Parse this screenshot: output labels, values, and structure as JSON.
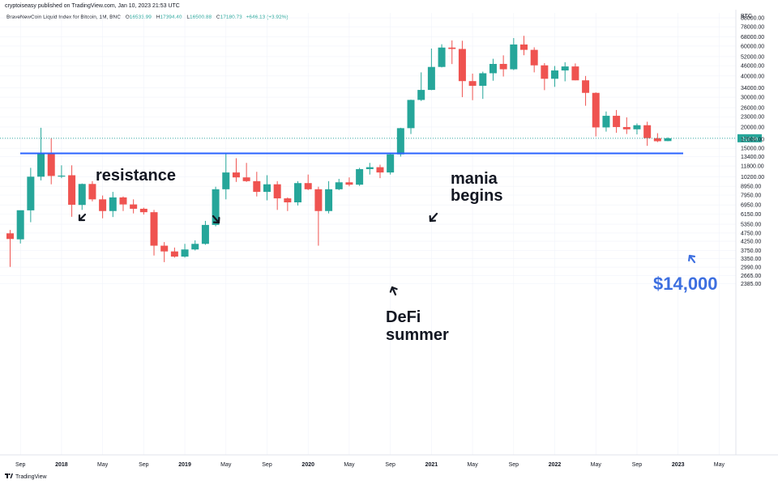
{
  "header": {
    "publisher": "cryptoiseasy published on TradingView.com, Jan 10, 2023 21:53 UTC"
  },
  "symbol_info": {
    "name": "BraveNewCoin Liquid Index for Bitcoin, 1M, BNC",
    "open_label": "O",
    "open": "16533.99",
    "high_label": "H",
    "high": "17394.40",
    "low_label": "L",
    "low": "16500.88",
    "close_label": "C",
    "close": "17180.73",
    "change": "+646.13 (+3.92%)"
  },
  "branding": {
    "label": "TradingView"
  },
  "colors": {
    "up": "#26a69a",
    "down": "#ef5350",
    "support_line": "#2962ff",
    "price_label": "#26a69a",
    "annotation_price": "#3d6fe0",
    "axis_text": "#131722",
    "grid": "#f0f3fa"
  },
  "chart_data": {
    "type": "candlestick",
    "y_scale": "log",
    "ylim": [
      2100,
      110000
    ],
    "currency_label": "BTC",
    "y_ticks": [
      "88000.00",
      "78000.00",
      "68000.00",
      "60000.00",
      "52000.00",
      "46000.00",
      "40000.00",
      "34000.00",
      "30000.00",
      "26000.00",
      "23000.00",
      "20000.00",
      "17000.00",
      "15000.00",
      "13400.00",
      "11800.00",
      "10200.00",
      "8950.00",
      "7950.00",
      "6950.00",
      "6150.00",
      "5350.00",
      "4750.00",
      "4250.00",
      "3750.00",
      "3350.00",
      "2990.00",
      "2665.00",
      "2385.00"
    ],
    "x_ticks": [
      "Sep",
      "2018",
      "May",
      "Sep",
      "2019",
      "May",
      "Sep",
      "2020",
      "May",
      "Sep",
      "2021",
      "May",
      "Sep",
      "2022",
      "May",
      "Sep",
      "2023",
      "May"
    ],
    "candles": [
      {
        "date": "2017-08",
        "o": 4730,
        "h": 4950,
        "l": 3000,
        "c": 4380
      },
      {
        "date": "2017-09",
        "o": 4360,
        "h": 6450,
        "l": 4120,
        "c": 6470
      },
      {
        "date": "2017-10",
        "o": 6460,
        "h": 11500,
        "l": 5500,
        "c": 10200
      },
      {
        "date": "2017-11",
        "o": 10200,
        "h": 19800,
        "l": 9700,
        "c": 13900
      },
      {
        "date": "2017-12",
        "o": 13900,
        "h": 17200,
        "l": 9200,
        "c": 10300
      },
      {
        "date": "2018-01",
        "o": 10300,
        "h": 11900,
        "l": 10000,
        "c": 10350
      },
      {
        "date": "2018-02",
        "o": 10400,
        "h": 11900,
        "l": 5920,
        "c": 6970
      },
      {
        "date": "2018-03",
        "o": 6950,
        "h": 9300,
        "l": 6500,
        "c": 9240
      },
      {
        "date": "2018-04",
        "o": 9240,
        "h": 9600,
        "l": 7300,
        "c": 7500
      },
      {
        "date": "2018-05",
        "o": 7500,
        "h": 7900,
        "l": 5800,
        "c": 6400
      },
      {
        "date": "2018-06",
        "o": 6400,
        "h": 8300,
        "l": 5900,
        "c": 7700
      },
      {
        "date": "2018-07",
        "o": 7700,
        "h": 7800,
        "l": 6400,
        "c": 7000
      },
      {
        "date": "2018-08",
        "o": 7000,
        "h": 7500,
        "l": 6200,
        "c": 6600
      },
      {
        "date": "2018-09",
        "o": 6600,
        "h": 6700,
        "l": 6100,
        "c": 6300
      },
      {
        "date": "2018-10",
        "o": 6300,
        "h": 6500,
        "l": 3500,
        "c": 4000
      },
      {
        "date": "2018-11",
        "o": 4000,
        "h": 4200,
        "l": 3200,
        "c": 3700
      },
      {
        "date": "2018-12",
        "o": 3700,
        "h": 3900,
        "l": 3400,
        "c": 3450
      },
      {
        "date": "2019-01",
        "o": 3450,
        "h": 4100,
        "l": 3400,
        "c": 3800
      },
      {
        "date": "2019-02",
        "o": 3800,
        "h": 4300,
        "l": 3750,
        "c": 4100
      },
      {
        "date": "2019-03",
        "o": 4100,
        "h": 5600,
        "l": 4050,
        "c": 5300
      },
      {
        "date": "2019-04",
        "o": 5300,
        "h": 8900,
        "l": 5200,
        "c": 8600
      },
      {
        "date": "2019-05",
        "o": 8600,
        "h": 13900,
        "l": 7500,
        "c": 10800
      },
      {
        "date": "2019-06",
        "o": 10800,
        "h": 13100,
        "l": 9500,
        "c": 10100
      },
      {
        "date": "2019-07",
        "o": 10100,
        "h": 12300,
        "l": 9500,
        "c": 9600
      },
      {
        "date": "2019-08",
        "o": 9600,
        "h": 10900,
        "l": 7800,
        "c": 8300
      },
      {
        "date": "2019-09",
        "o": 8300,
        "h": 10400,
        "l": 7400,
        "c": 9200
      },
      {
        "date": "2019-10",
        "o": 9200,
        "h": 9600,
        "l": 6500,
        "c": 7600
      },
      {
        "date": "2019-11",
        "o": 7600,
        "h": 7700,
        "l": 6400,
        "c": 7200
      },
      {
        "date": "2019-12",
        "o": 7200,
        "h": 9600,
        "l": 6900,
        "c": 9350
      },
      {
        "date": "2020-01",
        "o": 9350,
        "h": 10500,
        "l": 8500,
        "c": 8600
      },
      {
        "date": "2020-02",
        "o": 8600,
        "h": 8900,
        "l": 4000,
        "c": 6400
      },
      {
        "date": "2020-03",
        "o": 6400,
        "h": 9600,
        "l": 6200,
        "c": 8600
      },
      {
        "date": "2020-04",
        "o": 8600,
        "h": 9900,
        "l": 8500,
        "c": 9450
      },
      {
        "date": "2020-05",
        "o": 9450,
        "h": 10100,
        "l": 8950,
        "c": 9150
      },
      {
        "date": "2020-06",
        "o": 9150,
        "h": 11500,
        "l": 9000,
        "c": 11300
      },
      {
        "date": "2020-07",
        "o": 11300,
        "h": 12300,
        "l": 10500,
        "c": 11600
      },
      {
        "date": "2020-08",
        "o": 11600,
        "h": 12000,
        "l": 10000,
        "c": 10800
      },
      {
        "date": "2020-09",
        "o": 10800,
        "h": 14100,
        "l": 10500,
        "c": 13800
      },
      {
        "date": "2020-10",
        "o": 13800,
        "h": 19800,
        "l": 13400,
        "c": 19700
      },
      {
        "date": "2020-11",
        "o": 19700,
        "h": 29000,
        "l": 18200,
        "c": 28900
      },
      {
        "date": "2020-12",
        "o": 28900,
        "h": 42000,
        "l": 28500,
        "c": 33100
      },
      {
        "date": "2021-01",
        "o": 33100,
        "h": 58000,
        "l": 33000,
        "c": 45200
      },
      {
        "date": "2021-02",
        "o": 45200,
        "h": 61500,
        "l": 44900,
        "c": 58800
      },
      {
        "date": "2021-03",
        "o": 58800,
        "h": 64800,
        "l": 47000,
        "c": 57700
      },
      {
        "date": "2021-04",
        "o": 57700,
        "h": 64500,
        "l": 30000,
        "c": 37300
      },
      {
        "date": "2021-05",
        "o": 37300,
        "h": 41300,
        "l": 28800,
        "c": 35000
      },
      {
        "date": "2021-06",
        "o": 35000,
        "h": 42400,
        "l": 29300,
        "c": 41500
      },
      {
        "date": "2021-07",
        "o": 41500,
        "h": 50500,
        "l": 37500,
        "c": 47100
      },
      {
        "date": "2021-08",
        "o": 47100,
        "h": 52900,
        "l": 39700,
        "c": 43800
      },
      {
        "date": "2021-09",
        "o": 43800,
        "h": 66900,
        "l": 43300,
        "c": 61300
      },
      {
        "date": "2021-10",
        "o": 61300,
        "h": 69000,
        "l": 53000,
        "c": 57000
      },
      {
        "date": "2021-11",
        "o": 57000,
        "h": 59000,
        "l": 42000,
        "c": 46200
      },
      {
        "date": "2021-12",
        "o": 46200,
        "h": 47600,
        "l": 33000,
        "c": 38500
      },
      {
        "date": "2022-01",
        "o": 38500,
        "h": 45800,
        "l": 34500,
        "c": 43100
      },
      {
        "date": "2022-02",
        "o": 43100,
        "h": 48200,
        "l": 37200,
        "c": 45500
      },
      {
        "date": "2022-03",
        "o": 45500,
        "h": 47400,
        "l": 37700,
        "c": 37700
      },
      {
        "date": "2022-04",
        "o": 37700,
        "h": 40000,
        "l": 26700,
        "c": 31800
      },
      {
        "date": "2022-05",
        "o": 31800,
        "h": 32000,
        "l": 17600,
        "c": 19900
      },
      {
        "date": "2022-06",
        "o": 19900,
        "h": 24700,
        "l": 18800,
        "c": 23300
      },
      {
        "date": "2022-07",
        "o": 23300,
        "h": 25200,
        "l": 18500,
        "c": 20000
      },
      {
        "date": "2022-08",
        "o": 20000,
        "h": 22800,
        "l": 18200,
        "c": 19400
      },
      {
        "date": "2022-09",
        "o": 19400,
        "h": 21000,
        "l": 18100,
        "c": 20500
      },
      {
        "date": "2022-10",
        "o": 20500,
        "h": 21500,
        "l": 15500,
        "c": 17200
      },
      {
        "date": "2022-11",
        "o": 17200,
        "h": 18400,
        "l": 16300,
        "c": 16500
      },
      {
        "date": "2022-12",
        "o": 16533.99,
        "h": 17394.4,
        "l": 16500.88,
        "c": 17180.73
      }
    ],
    "support_line": {
      "value": 14000
    },
    "last_price_tag": "21d 3h",
    "annotations": [
      "resistance",
      "mania",
      "begins",
      "DeFi",
      "summer",
      "$14,000"
    ]
  }
}
